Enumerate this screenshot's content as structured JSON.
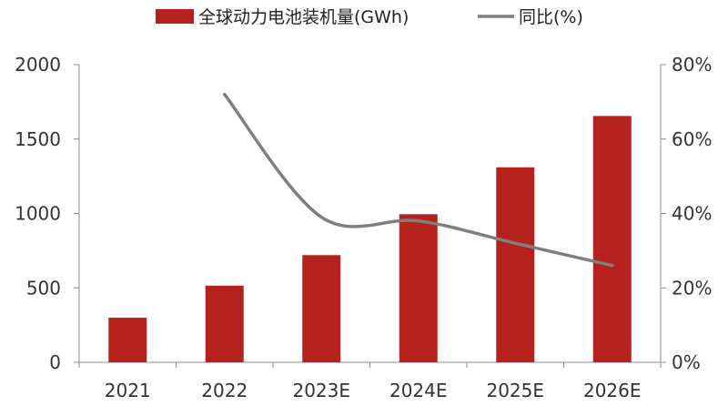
{
  "chart_data": {
    "type": "bar",
    "categories": [
      "2021",
      "2022",
      "2023E",
      "2024E",
      "2025E",
      "2026E"
    ],
    "series": [
      {
        "name": "全球动力电池装机量(GWh)",
        "kind": "bar",
        "axis": "left",
        "color": "#b5221d",
        "values": [
          300,
          515,
          720,
          995,
          1310,
          1655
        ]
      },
      {
        "name": "同比(%)",
        "kind": "line",
        "axis": "right",
        "color": "#7f7f7f",
        "values": [
          null,
          72,
          39,
          38,
          32,
          26
        ]
      }
    ],
    "y_left": {
      "ylim": [
        0,
        2000
      ],
      "ticks": [
        "0",
        "500",
        "1000",
        "1500",
        "2000"
      ]
    },
    "y_right": {
      "ylim": [
        0,
        80
      ],
      "ticks": [
        "0%",
        "20%",
        "40%",
        "60%",
        "80%"
      ]
    },
    "legend": "top-center",
    "grid": false
  }
}
